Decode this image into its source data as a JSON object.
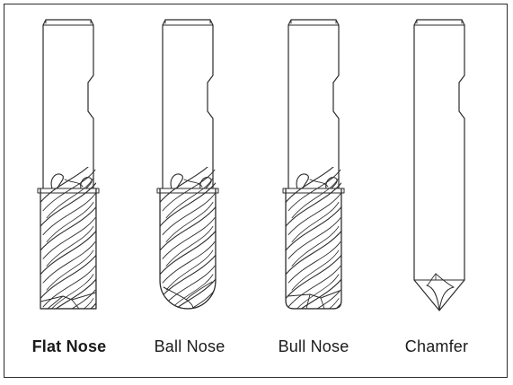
{
  "tools": [
    {
      "id": "flat",
      "label": "Flat Nose",
      "emphasis": "bold"
    },
    {
      "id": "ball",
      "label": "Ball Nose",
      "emphasis": "normal"
    },
    {
      "id": "bull",
      "label": "Bull Nose",
      "emphasis": "normal"
    },
    {
      "id": "chamfer",
      "label": "Chamfer",
      "emphasis": "normal"
    }
  ],
  "colors": {
    "line": "#2b2b2b",
    "background": "#ffffff"
  }
}
